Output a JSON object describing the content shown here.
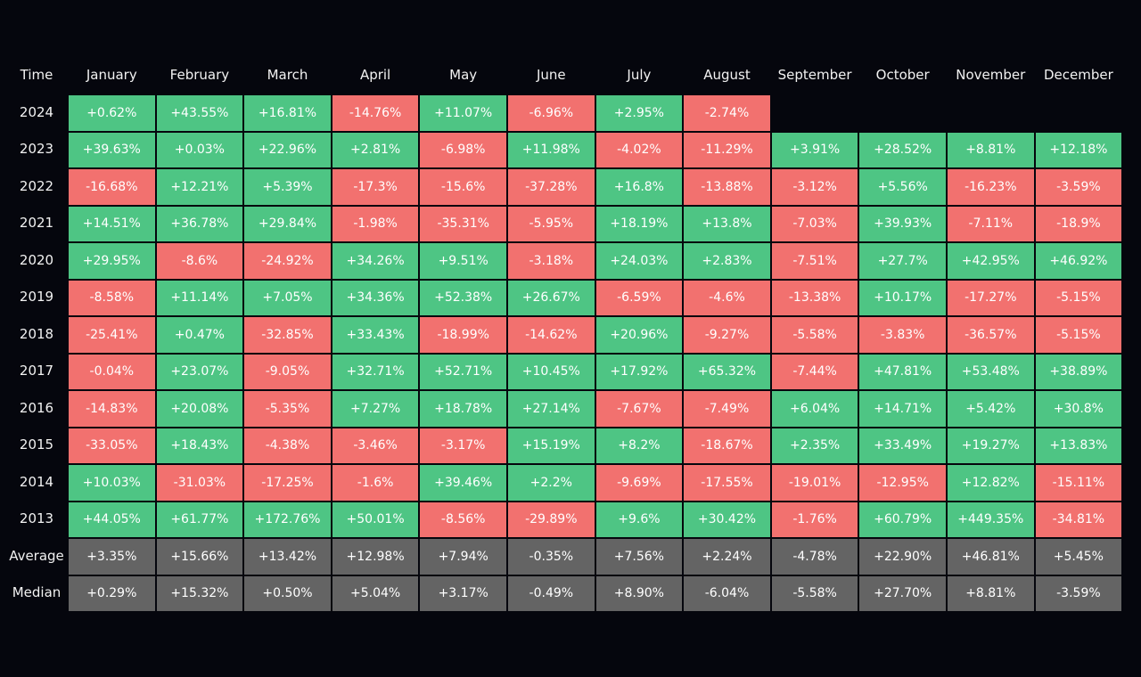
{
  "table": {
    "header": [
      "Time",
      "January",
      "February",
      "March",
      "April",
      "May",
      "June",
      "July",
      "August",
      "September",
      "October",
      "November",
      "December"
    ],
    "rows": [
      {
        "label": "2024",
        "cells": [
          "+0.62%",
          "+43.55%",
          "+16.81%",
          "-14.76%",
          "+11.07%",
          "-6.96%",
          "+2.95%",
          "-2.74%"
        ]
      },
      {
        "label": "2023",
        "cells": [
          "+39.63%",
          "+0.03%",
          "+22.96%",
          "+2.81%",
          "-6.98%",
          "+11.98%",
          "-4.02%",
          "-11.29%",
          "+3.91%",
          "+28.52%",
          "+8.81%",
          "+12.18%"
        ]
      },
      {
        "label": "2022",
        "cells": [
          "-16.68%",
          "+12.21%",
          "+5.39%",
          "-17.3%",
          "-15.6%",
          "-37.28%",
          "+16.8%",
          "-13.88%",
          "-3.12%",
          "+5.56%",
          "-16.23%",
          "-3.59%"
        ]
      },
      {
        "label": "2021",
        "cells": [
          "+14.51%",
          "+36.78%",
          "+29.84%",
          "-1.98%",
          "-35.31%",
          "-5.95%",
          "+18.19%",
          "+13.8%",
          "-7.03%",
          "+39.93%",
          "-7.11%",
          "-18.9%"
        ]
      },
      {
        "label": "2020",
        "cells": [
          "+29.95%",
          "-8.6%",
          "-24.92%",
          "+34.26%",
          "+9.51%",
          "-3.18%",
          "+24.03%",
          "+2.83%",
          "-7.51%",
          "+27.7%",
          "+42.95%",
          "+46.92%"
        ]
      },
      {
        "label": "2019",
        "cells": [
          "-8.58%",
          "+11.14%",
          "+7.05%",
          "+34.36%",
          "+52.38%",
          "+26.67%",
          "-6.59%",
          "-4.6%",
          "-13.38%",
          "+10.17%",
          "-17.27%",
          "-5.15%"
        ]
      },
      {
        "label": "2018",
        "cells": [
          "-25.41%",
          "+0.47%",
          "-32.85%",
          "+33.43%",
          "-18.99%",
          "-14.62%",
          "+20.96%",
          "-9.27%",
          "-5.58%",
          "-3.83%",
          "-36.57%",
          "-5.15%"
        ]
      },
      {
        "label": "2017",
        "cells": [
          "-0.04%",
          "+23.07%",
          "-9.05%",
          "+32.71%",
          "+52.71%",
          "+10.45%",
          "+17.92%",
          "+65.32%",
          "-7.44%",
          "+47.81%",
          "+53.48%",
          "+38.89%"
        ]
      },
      {
        "label": "2016",
        "cells": [
          "-14.83%",
          "+20.08%",
          "-5.35%",
          "+7.27%",
          "+18.78%",
          "+27.14%",
          "-7.67%",
          "-7.49%",
          "+6.04%",
          "+14.71%",
          "+5.42%",
          "+30.8%"
        ]
      },
      {
        "label": "2015",
        "cells": [
          "-33.05%",
          "+18.43%",
          "-4.38%",
          "-3.46%",
          "-3.17%",
          "+15.19%",
          "+8.2%",
          "-18.67%",
          "+2.35%",
          "+33.49%",
          "+19.27%",
          "+13.83%"
        ]
      },
      {
        "label": "2014",
        "cells": [
          "+10.03%",
          "-31.03%",
          "-17.25%",
          "-1.6%",
          "+39.46%",
          "+2.2%",
          "-9.69%",
          "-17.55%",
          "-19.01%",
          "-12.95%",
          "+12.82%",
          "-15.11%"
        ]
      },
      {
        "label": "2013",
        "cells": [
          "+44.05%",
          "+61.77%",
          "+172.76%",
          "+50.01%",
          "-8.56%",
          "-29.89%",
          "+9.6%",
          "+30.42%",
          "-1.76%",
          "+60.79%",
          "+449.35%",
          "-34.81%"
        ]
      }
    ],
    "summary": [
      {
        "label": "Average",
        "cells": [
          "+3.35%",
          "+15.66%",
          "+13.42%",
          "+12.98%",
          "+7.94%",
          "-0.35%",
          "+7.56%",
          "+2.24%",
          "-4.78%",
          "+22.90%",
          "+46.81%",
          "+5.45%"
        ]
      },
      {
        "label": "Median",
        "cells": [
          "+0.29%",
          "+15.32%",
          "+0.50%",
          "+5.04%",
          "+3.17%",
          "-0.49%",
          "+8.90%",
          "-6.04%",
          "-5.58%",
          "+27.70%",
          "+8.81%",
          "-3.59%"
        ]
      }
    ]
  }
}
